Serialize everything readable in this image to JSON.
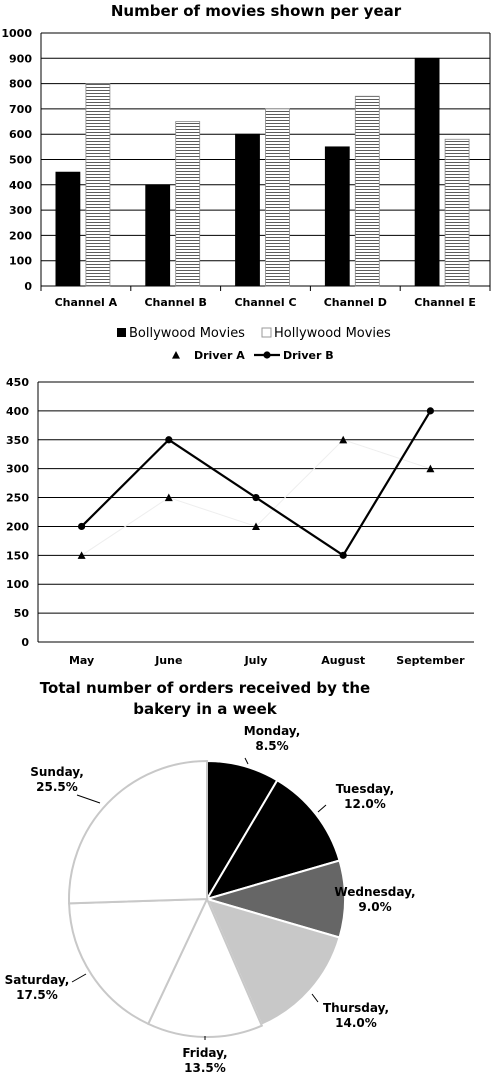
{
  "chart_data": [
    {
      "type": "bar",
      "title": "Number of movies shown per year",
      "categories": [
        "Channel A",
        "Channel B",
        "Channel C",
        "Channel D",
        "Channel E"
      ],
      "series": [
        {
          "name": "Bollywood Movies",
          "values": [
            450,
            400,
            600,
            550,
            900
          ],
          "color": "#000000",
          "pattern": "solid"
        },
        {
          "name": "Hollywood Movies",
          "values": [
            800,
            650,
            700,
            750,
            580
          ],
          "color": "#ffffff",
          "pattern": "horizontal-lines"
        }
      ],
      "ylim": [
        0,
        1000
      ],
      "yticks": [
        0,
        100,
        200,
        300,
        400,
        500,
        600,
        700,
        800,
        900,
        1000
      ],
      "grid": true,
      "legend_position": "bottom"
    },
    {
      "type": "line",
      "categories": [
        "May",
        "June",
        "July",
        "August",
        "September"
      ],
      "series": [
        {
          "name": "Driver A",
          "values": [
            150,
            250,
            200,
            350,
            300
          ],
          "marker": "triangle",
          "line": false
        },
        {
          "name": "Driver B",
          "values": [
            200,
            350,
            250,
            150,
            400
          ],
          "marker": "circle",
          "line": true
        }
      ],
      "ylim": [
        0,
        450
      ],
      "yticks": [
        0,
        50,
        100,
        150,
        200,
        250,
        300,
        350,
        400,
        450
      ],
      "grid": true,
      "legend_position": "top"
    },
    {
      "type": "pie",
      "title": "Total number of orders received by the bakery in a week",
      "title_lines": [
        "Total number of orders received by the",
        "bakery in a week"
      ],
      "slices": [
        {
          "label": "Monday",
          "percent_label": "8.5%",
          "value": 8.5,
          "color": "#000000"
        },
        {
          "label": "Tuesday",
          "percent_label": "12.0%",
          "value": 12.0,
          "color": "#000000"
        },
        {
          "label": "Wednesday",
          "percent_label": "9.0%",
          "value": 9.0,
          "color": "#666666"
        },
        {
          "label": "Thursday",
          "percent_label": "14.0%",
          "value": 14.0,
          "color": "#c8c8c8"
        },
        {
          "label": "Friday",
          "percent_label": "13.5%",
          "value": 13.5,
          "color": "#ffffff"
        },
        {
          "label": "Saturday",
          "percent_label": "17.5%",
          "value": 17.5,
          "color": "#ffffff"
        },
        {
          "label": "Sunday",
          "percent_label": "25.5%",
          "value": 25.5,
          "color": "#ffffff"
        }
      ]
    }
  ]
}
